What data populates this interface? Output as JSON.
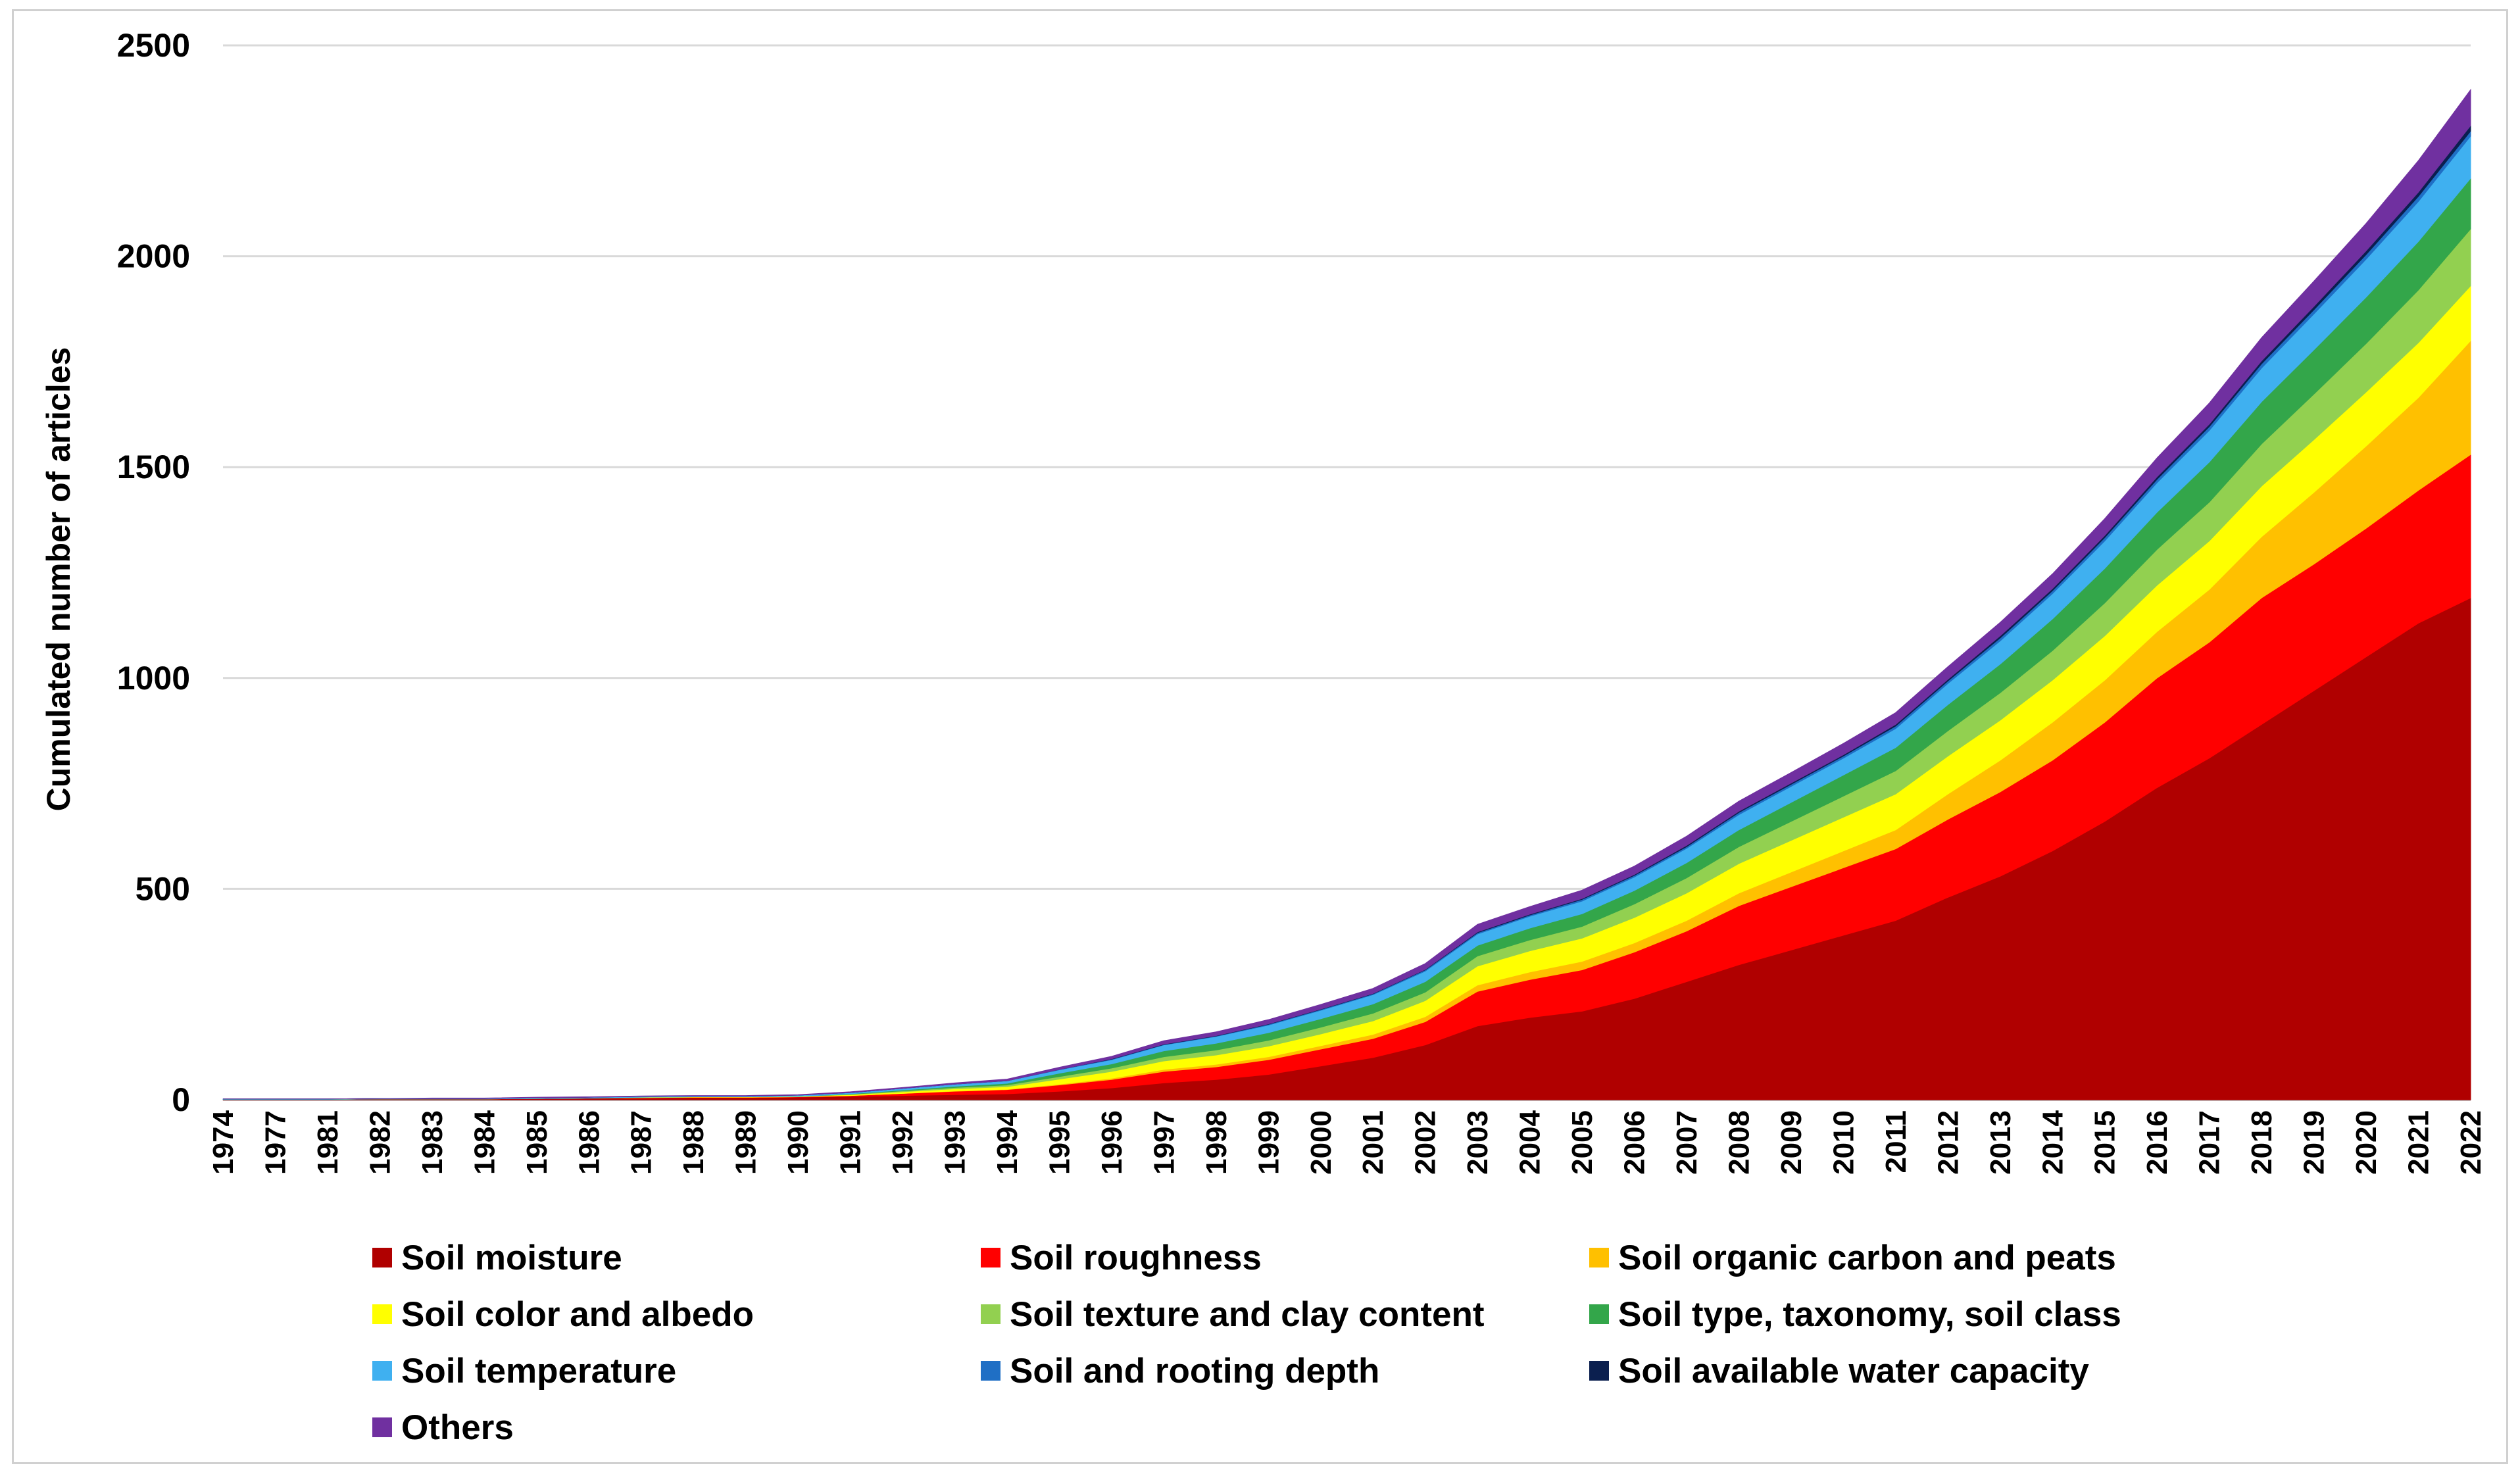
{
  "chart_data": {
    "type": "area",
    "stacked": true,
    "title": "",
    "xlabel": "",
    "ylabel": "Cumulated number of articles",
    "ylim": [
      0,
      2500
    ],
    "yticks": [
      "0",
      "500",
      "1000",
      "1500",
      "2000",
      "2500"
    ],
    "grid": "horizontal",
    "legend_position": "bottom",
    "categories": [
      "1974",
      "1977",
      "1981",
      "1982",
      "1983",
      "1984",
      "1985",
      "1986",
      "1987",
      "1988",
      "1989",
      "1990",
      "1991",
      "1992",
      "1993",
      "1994",
      "1995",
      "1996",
      "1997",
      "1998",
      "1999",
      "2000",
      "2001",
      "2002",
      "2003",
      "2004",
      "2005",
      "2006",
      "2007",
      "2008",
      "2009",
      "2010",
      "2011",
      "2012",
      "2013",
      "2014",
      "2015",
      "2016",
      "2017",
      "2018",
      "2019",
      "2020",
      "2021",
      "2022"
    ],
    "series": [
      {
        "name": "Soil moisture",
        "color": "#b00000",
        "values": [
          1,
          1,
          1,
          2,
          2,
          2,
          3,
          4,
          4,
          5,
          5,
          6,
          8,
          10,
          12,
          14,
          20,
          28,
          40,
          48,
          60,
          80,
          100,
          130,
          175,
          195,
          210,
          240,
          280,
          320,
          355,
          390,
          425,
          480,
          530,
          590,
          660,
          740,
          810,
          890,
          970,
          1050,
          1130,
          1190
        ]
      },
      {
        "name": "Soil roughness",
        "color": "#ff0000",
        "values": [
          0,
          0,
          0,
          0,
          0,
          0,
          0,
          0,
          1,
          1,
          1,
          1,
          2,
          5,
          8,
          10,
          15,
          20,
          27,
          30,
          35,
          40,
          45,
          55,
          82,
          90,
          98,
          110,
          120,
          140,
          150,
          160,
          170,
          185,
          200,
          215,
          235,
          260,
          275,
          300,
          300,
          305,
          315,
          340
        ]
      },
      {
        "name": "Soil organic carbon and peats",
        "color": "#ffc000",
        "values": [
          0,
          0,
          0,
          0,
          0,
          0,
          0,
          0,
          0,
          0,
          0,
          0,
          0,
          0,
          1,
          1,
          2,
          3,
          5,
          6,
          7,
          8,
          10,
          12,
          15,
          18,
          20,
          22,
          25,
          30,
          35,
          40,
          45,
          60,
          75,
          90,
          100,
          110,
          125,
          145,
          170,
          195,
          220,
          270
        ]
      },
      {
        "name": "Soil color and albedo",
        "color": "#ffff00",
        "values": [
          0,
          0,
          0,
          0,
          0,
          0,
          0,
          0,
          1,
          1,
          1,
          1,
          2,
          4,
          5,
          6,
          12,
          16,
          20,
          22,
          25,
          28,
          32,
          38,
          45,
          50,
          55,
          60,
          65,
          70,
          75,
          80,
          85,
          90,
          95,
          100,
          105,
          110,
          115,
          120,
          125,
          128,
          130,
          130
        ]
      },
      {
        "name": "Soil texture and clay content",
        "color": "#92d050",
        "values": [
          0,
          0,
          0,
          0,
          0,
          0,
          0,
          0,
          0,
          0,
          0,
          0,
          1,
          2,
          3,
          4,
          6,
          8,
          10,
          12,
          14,
          16,
          18,
          20,
          24,
          26,
          28,
          32,
          36,
          40,
          45,
          50,
          55,
          60,
          65,
          70,
          78,
          85,
          92,
          100,
          108,
          115,
          125,
          135
        ]
      },
      {
        "name": "Soil type, taxonomy, soil class",
        "color": "#33a64a",
        "values": [
          0,
          0,
          0,
          0,
          0,
          0,
          0,
          0,
          0,
          0,
          0,
          0,
          1,
          2,
          3,
          4,
          8,
          10,
          14,
          16,
          18,
          20,
          22,
          25,
          25,
          28,
          30,
          32,
          36,
          40,
          45,
          50,
          55,
          62,
          68,
          75,
          82,
          88,
          95,
          100,
          105,
          110,
          115,
          120
        ]
      },
      {
        "name": "Soil temperature",
        "color": "#3fb0f0",
        "values": [
          1,
          1,
          1,
          1,
          1,
          1,
          2,
          2,
          2,
          2,
          2,
          3,
          3,
          4,
          5,
          6,
          8,
          10,
          14,
          16,
          18,
          20,
          22,
          25,
          27,
          28,
          30,
          32,
          34,
          36,
          38,
          40,
          45,
          50,
          55,
          60,
          65,
          70,
          75,
          80,
          85,
          90,
          95,
          100
        ]
      },
      {
        "name": "Soil and rooting depth",
        "color": "#1f6fc5",
        "values": [
          0,
          0,
          0,
          0,
          0,
          0,
          0,
          0,
          0,
          0,
          0,
          0,
          0,
          0,
          0,
          0,
          1,
          1,
          1,
          1,
          2,
          2,
          2,
          3,
          3,
          3,
          4,
          4,
          4,
          5,
          5,
          5,
          6,
          6,
          7,
          7,
          8,
          8,
          9,
          10,
          10,
          11,
          12,
          12
        ]
      },
      {
        "name": "Soil available water capacity",
        "color": "#0b1f4f",
        "values": [
          0,
          0,
          0,
          0,
          0,
          0,
          0,
          0,
          0,
          0,
          0,
          0,
          0,
          0,
          0,
          0,
          0,
          1,
          1,
          1,
          1,
          1,
          1,
          1,
          2,
          2,
          2,
          2,
          3,
          3,
          3,
          3,
          4,
          4,
          5,
          5,
          5,
          6,
          6,
          7,
          8,
          9,
          10,
          13
        ]
      },
      {
        "name": "Others",
        "color": "#7030a0",
        "values": [
          0,
          0,
          0,
          0,
          1,
          1,
          1,
          1,
          1,
          1,
          1,
          1,
          2,
          2,
          3,
          4,
          5,
          6,
          8,
          9,
          10,
          11,
          12,
          14,
          18,
          18,
          20,
          20,
          22,
          24,
          25,
          27,
          28,
          30,
          32,
          35,
          40,
          45,
          50,
          55,
          60,
          65,
          75,
          85
        ]
      }
    ]
  }
}
